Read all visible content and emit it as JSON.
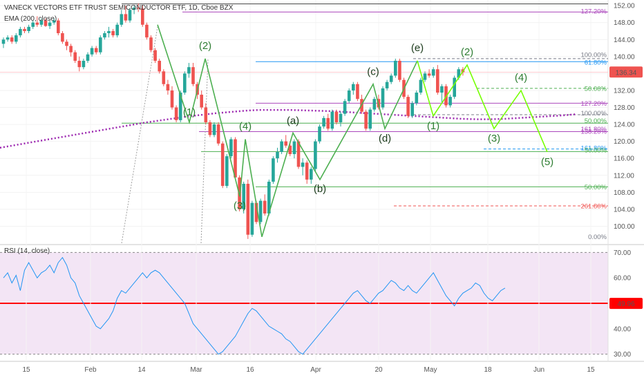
{
  "header": {
    "title": "VANECK VECTORS ETF TRUST SEMICONDUCTOR ETF, 1D, Cboe BZX",
    "ema_label": "EMA (200, close)",
    "rsi_label": "RSI (14, close)"
  },
  "colors": {
    "up": "#26a69a",
    "down": "#ef5350",
    "wave_green": "#4caf50",
    "wave_label_green": "#2e7d32",
    "wave_label_dark": "#1b3a1b",
    "ema": "#9c27b0",
    "rsi_line": "#2196f3",
    "rsi_band": "#f3e5f5",
    "rsi_mid": "#ff0000",
    "fib_purple": "#ab47bc",
    "fib_red": "#ef5350",
    "fib_blue": "#2196f3",
    "fib_gray": "#787b86",
    "price_badge": "#ef5350"
  },
  "chart_data": [
    {
      "type": "candlestick",
      "title": "VANECK VECTORS ETF TRUST SEMICONDUCTOR ETF, 1D, Cboe BZX",
      "ylim": [
        96,
        153
      ],
      "y_ticks": [
        "152.00",
        "148.00",
        "144.00",
        "140.00",
        "136.00",
        "132.00",
        "128.00",
        "124.00",
        "120.00",
        "116.00",
        "112.00",
        "108.00",
        "104.00",
        "100.00"
      ],
      "x_ticks": [
        "15",
        "Feb",
        "14",
        "Mar",
        "16",
        "Apr",
        "20",
        "May",
        "18",
        "Jun",
        "15"
      ],
      "last_price": "136.34",
      "candles": [
        {
          "o": 143,
          "h": 144.5,
          "l": 142,
          "c": 144
        },
        {
          "o": 144,
          "h": 145,
          "l": 143.5,
          "c": 144.5
        },
        {
          "o": 144.5,
          "h": 145,
          "l": 143,
          "c": 143.5
        },
        {
          "o": 143.5,
          "h": 145.5,
          "l": 143,
          "c": 145
        },
        {
          "o": 145,
          "h": 147,
          "l": 144.5,
          "c": 146.5
        },
        {
          "o": 146.5,
          "h": 147,
          "l": 145.5,
          "c": 146
        },
        {
          "o": 146,
          "h": 147.5,
          "l": 145.5,
          "c": 147
        },
        {
          "o": 147,
          "h": 148.5,
          "l": 146.5,
          "c": 148
        },
        {
          "o": 148,
          "h": 149.5,
          "l": 147,
          "c": 147.5
        },
        {
          "o": 147.5,
          "h": 149,
          "l": 147,
          "c": 148.5
        },
        {
          "o": 148.5,
          "h": 149,
          "l": 147,
          "c": 147.2
        },
        {
          "o": 147.2,
          "h": 148.5,
          "l": 146.5,
          "c": 148
        },
        {
          "o": 148,
          "h": 149,
          "l": 147.5,
          "c": 148.5
        },
        {
          "o": 148.5,
          "h": 149,
          "l": 145,
          "c": 145.5
        },
        {
          "o": 145.5,
          "h": 146,
          "l": 143,
          "c": 143.5
        },
        {
          "o": 143.5,
          "h": 144,
          "l": 141.5,
          "c": 142.5
        },
        {
          "o": 142.5,
          "h": 143,
          "l": 140,
          "c": 141
        },
        {
          "o": 141,
          "h": 141.5,
          "l": 138.5,
          "c": 139
        },
        {
          "o": 139,
          "h": 140,
          "l": 136.5,
          "c": 137.5
        },
        {
          "o": 137.5,
          "h": 139.5,
          "l": 137,
          "c": 139
        },
        {
          "o": 139,
          "h": 141,
          "l": 138.5,
          "c": 140.5
        },
        {
          "o": 140.5,
          "h": 142.5,
          "l": 140,
          "c": 142
        },
        {
          "o": 142,
          "h": 142.5,
          "l": 140.5,
          "c": 141
        },
        {
          "o": 141,
          "h": 145,
          "l": 140.5,
          "c": 144.5
        },
        {
          "o": 144.5,
          "h": 146,
          "l": 144,
          "c": 145.5
        },
        {
          "o": 145.5,
          "h": 147,
          "l": 144.5,
          "c": 146
        },
        {
          "o": 146,
          "h": 146.5,
          "l": 144.5,
          "c": 145
        },
        {
          "o": 145,
          "h": 148,
          "l": 144.5,
          "c": 147.5
        },
        {
          "o": 147.5,
          "h": 151,
          "l": 147,
          "c": 150
        },
        {
          "o": 150,
          "h": 152,
          "l": 148,
          "c": 148.5
        },
        {
          "o": 148.5,
          "h": 151.5,
          "l": 148,
          "c": 151
        },
        {
          "o": 151,
          "h": 152,
          "l": 150,
          "c": 151.5
        },
        {
          "o": 151.5,
          "h": 152.5,
          "l": 150.5,
          "c": 151.3
        },
        {
          "o": 151.3,
          "h": 152,
          "l": 147,
          "c": 147.5
        },
        {
          "o": 147.5,
          "h": 148,
          "l": 144,
          "c": 144.5
        },
        {
          "o": 144.5,
          "h": 145,
          "l": 141,
          "c": 141.5
        },
        {
          "o": 141.5,
          "h": 142,
          "l": 138.5,
          "c": 139
        },
        {
          "o": 139,
          "h": 139.5,
          "l": 136,
          "c": 136.5
        },
        {
          "o": 136.5,
          "h": 137,
          "l": 133,
          "c": 133.5
        },
        {
          "o": 133.5,
          "h": 134.5,
          "l": 131,
          "c": 132
        },
        {
          "o": 132,
          "h": 133,
          "l": 127.5,
          "c": 128
        },
        {
          "o": 128,
          "h": 128.5,
          "l": 124.5,
          "c": 125
        },
        {
          "o": 125,
          "h": 132,
          "l": 124.5,
          "c": 131.5
        },
        {
          "o": 131.5,
          "h": 136.5,
          "l": 131,
          "c": 136
        },
        {
          "o": 136,
          "h": 138.5,
          "l": 135,
          "c": 137.5
        },
        {
          "o": 137.5,
          "h": 138.5,
          "l": 133,
          "c": 133.5
        },
        {
          "o": 133.5,
          "h": 134,
          "l": 130,
          "c": 131
        },
        {
          "o": 131,
          "h": 132,
          "l": 127.5,
          "c": 128
        },
        {
          "o": 128,
          "h": 129,
          "l": 124,
          "c": 124.5
        },
        {
          "o": 124.5,
          "h": 125,
          "l": 121,
          "c": 121.5
        },
        {
          "o": 121.5,
          "h": 124.5,
          "l": 121,
          "c": 124
        },
        {
          "o": 124,
          "h": 124.5,
          "l": 119,
          "c": 119.5
        },
        {
          "o": 119.5,
          "h": 120,
          "l": 109,
          "c": 109.5
        },
        {
          "o": 109.5,
          "h": 117,
          "l": 109,
          "c": 116.5
        },
        {
          "o": 116.5,
          "h": 121,
          "l": 116,
          "c": 120.5
        },
        {
          "o": 120.5,
          "h": 121,
          "l": 111,
          "c": 111.5
        },
        {
          "o": 111.5,
          "h": 112,
          "l": 103.5,
          "c": 104
        },
        {
          "o": 104,
          "h": 110.5,
          "l": 103,
          "c": 110
        },
        {
          "o": 110,
          "h": 111,
          "l": 97,
          "c": 98
        },
        {
          "o": 98,
          "h": 106,
          "l": 97.5,
          "c": 105.5
        },
        {
          "o": 105.5,
          "h": 106,
          "l": 100.5,
          "c": 101
        },
        {
          "o": 101,
          "h": 106.5,
          "l": 100.5,
          "c": 106
        },
        {
          "o": 106,
          "h": 107.5,
          "l": 102.5,
          "c": 103
        },
        {
          "o": 103,
          "h": 111,
          "l": 102.5,
          "c": 110.5
        },
        {
          "o": 110.5,
          "h": 116.5,
          "l": 110,
          "c": 116
        },
        {
          "o": 116,
          "h": 118.5,
          "l": 115,
          "c": 117.5
        },
        {
          "o": 117.5,
          "h": 120.5,
          "l": 117,
          "c": 120
        },
        {
          "o": 120,
          "h": 121.5,
          "l": 118.5,
          "c": 119
        },
        {
          "o": 119,
          "h": 120,
          "l": 116.5,
          "c": 117
        },
        {
          "o": 117,
          "h": 120.5,
          "l": 116,
          "c": 120
        },
        {
          "o": 120,
          "h": 120.5,
          "l": 113.5,
          "c": 114
        },
        {
          "o": 114,
          "h": 116,
          "l": 112,
          "c": 115
        },
        {
          "o": 115,
          "h": 115.5,
          "l": 110,
          "c": 111
        },
        {
          "o": 111,
          "h": 114,
          "l": 110,
          "c": 113.5
        },
        {
          "o": 113.5,
          "h": 120.5,
          "l": 113,
          "c": 120
        },
        {
          "o": 120,
          "h": 124,
          "l": 119.5,
          "c": 123.5
        },
        {
          "o": 123.5,
          "h": 126,
          "l": 123,
          "c": 125.5
        },
        {
          "o": 125.5,
          "h": 126.5,
          "l": 122.5,
          "c": 123
        },
        {
          "o": 123,
          "h": 127.5,
          "l": 122.5,
          "c": 127
        },
        {
          "o": 127,
          "h": 127.5,
          "l": 124,
          "c": 124.5
        },
        {
          "o": 124.5,
          "h": 127,
          "l": 123.5,
          "c": 126.5
        },
        {
          "o": 126.5,
          "h": 130,
          "l": 126,
          "c": 129.5
        },
        {
          "o": 129.5,
          "h": 132.5,
          "l": 129,
          "c": 132
        },
        {
          "o": 132,
          "h": 134,
          "l": 131,
          "c": 133.5
        },
        {
          "o": 133.5,
          "h": 134,
          "l": 129.5,
          "c": 130
        },
        {
          "o": 130,
          "h": 131,
          "l": 126.5,
          "c": 127
        },
        {
          "o": 127,
          "h": 127.5,
          "l": 122.5,
          "c": 123
        },
        {
          "o": 123,
          "h": 128,
          "l": 122.5,
          "c": 127.5
        },
        {
          "o": 127.5,
          "h": 130.5,
          "l": 127,
          "c": 130
        },
        {
          "o": 130,
          "h": 131,
          "l": 127.5,
          "c": 128
        },
        {
          "o": 128,
          "h": 133,
          "l": 127.5,
          "c": 132.5
        },
        {
          "o": 132.5,
          "h": 134.5,
          "l": 132,
          "c": 134
        },
        {
          "o": 134,
          "h": 136,
          "l": 133.5,
          "c": 135.5
        },
        {
          "o": 135.5,
          "h": 139.5,
          "l": 135,
          "c": 139
        },
        {
          "o": 139,
          "h": 139.5,
          "l": 134,
          "c": 134.5
        },
        {
          "o": 134.5,
          "h": 135,
          "l": 130,
          "c": 130.5
        },
        {
          "o": 130.5,
          "h": 131,
          "l": 125.5,
          "c": 126
        },
        {
          "o": 126,
          "h": 129.5,
          "l": 125.5,
          "c": 129
        },
        {
          "o": 129,
          "h": 132,
          "l": 128.5,
          "c": 131.5
        },
        {
          "o": 131.5,
          "h": 135,
          "l": 131,
          "c": 134.5
        },
        {
          "o": 134.5,
          "h": 136.5,
          "l": 134,
          "c": 136
        },
        {
          "o": 136,
          "h": 137,
          "l": 135,
          "c": 135.5
        },
        {
          "o": 135.5,
          "h": 137.5,
          "l": 135,
          "c": 137
        },
        {
          "o": 137,
          "h": 138,
          "l": 131,
          "c": 131.5
        },
        {
          "o": 131.5,
          "h": 133.5,
          "l": 129,
          "c": 133
        },
        {
          "o": 133,
          "h": 133.5,
          "l": 128,
          "c": 128.5
        },
        {
          "o": 128.5,
          "h": 131,
          "l": 128,
          "c": 130.5
        },
        {
          "o": 130.5,
          "h": 135.5,
          "l": 130,
          "c": 135
        },
        {
          "o": 135,
          "h": 137.5,
          "l": 134.5,
          "c": 137
        },
        {
          "o": 137,
          "h": 137.5,
          "l": 135.5,
          "c": 136.3
        }
      ],
      "ema_200": [
        122,
        122.4,
        122.8,
        123.2,
        123.6,
        124,
        124.4,
        124.8,
        125.2,
        125.6,
        126,
        126.3,
        126.6,
        126.9,
        127.1,
        127.3,
        127.4,
        127.5,
        127.5,
        127.5,
        127.5,
        127.4,
        127.3,
        127.2,
        127,
        126.8,
        126.6,
        126.4,
        126.2,
        126,
        125.8,
        125.6,
        125.4,
        125.3,
        125.3,
        125.4,
        125.6,
        125.8,
        126,
        126.2,
        126.5
      ],
      "waves": [
        {
          "label": "(1)",
          "value": 124.5
        },
        {
          "label": "(2)",
          "value": 139.5
        },
        {
          "label": "(3)",
          "value": 107
        },
        {
          "label": "(4)",
          "value": 120.5
        },
        {
          "label": "(a)",
          "value": 122
        },
        {
          "label": "(b)",
          "value": 111
        },
        {
          "label": "(c)",
          "value": 133.5
        },
        {
          "label": "(d)",
          "value": 123
        },
        {
          "label": "(e)",
          "value": 139
        },
        {
          "label": "(1)",
          "value": 126
        },
        {
          "label": "(2)",
          "value": 138
        },
        {
          "label": "(3)",
          "value": 123
        },
        {
          "label": "(4)",
          "value": 132
        },
        {
          "label": "(5)",
          "value": 117.5
        }
      ],
      "fib_labels": [
        "127.20%",
        "100.00%",
        "61.80%",
        "50.00%",
        "127.20%",
        "100.00%",
        "50.00%",
        "161.80%",
        "138.20%",
        "161.80%",
        "50.00%",
        "50.00%",
        "261.80%",
        "0.00%"
      ]
    },
    {
      "type": "line",
      "title": "RSI (14, close)",
      "ylim": [
        28,
        72
      ],
      "y_ticks": [
        "70.00",
        "60.00",
        "50.00",
        "40.00",
        "30.00"
      ],
      "last_value": "49.96",
      "values": [
        60,
        62,
        58,
        61,
        55,
        63,
        66,
        63,
        60,
        62,
        63,
        65,
        62,
        66,
        68,
        65,
        60,
        58,
        53,
        50,
        47,
        44,
        41,
        40,
        42,
        44,
        47,
        52,
        55,
        54,
        56,
        58,
        60,
        62,
        60,
        62,
        63,
        62,
        60,
        58,
        56,
        54,
        52,
        50,
        46,
        42,
        40,
        38,
        36,
        34,
        32,
        30,
        31,
        33,
        35,
        37,
        40,
        43,
        46,
        48,
        47,
        45,
        43,
        41,
        40,
        39,
        38,
        36,
        35,
        33,
        31,
        30,
        32,
        34,
        36,
        38,
        40,
        42,
        44,
        46,
        48,
        50,
        52,
        54,
        55,
        53,
        51,
        50,
        52,
        54,
        55,
        57,
        59,
        58,
        56,
        55,
        57,
        55,
        54,
        56,
        58,
        60,
        62,
        59,
        56,
        53,
        51,
        49,
        52,
        54,
        55,
        56,
        58,
        57,
        54,
        52,
        51,
        53,
        55,
        56
      ]
    }
  ]
}
